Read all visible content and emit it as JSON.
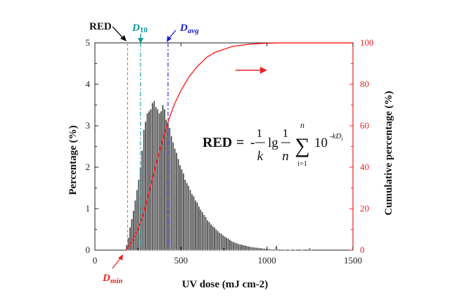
{
  "chart_data": {
    "type": "bar",
    "xlabel": "UV dose (mJ cm-2)",
    "ylabel": "Percentage (%)",
    "y2label": "Cumulative percentage (%)",
    "xlim": [
      0,
      1500
    ],
    "ylim": [
      0,
      5
    ],
    "y2lim": [
      0,
      100
    ],
    "xticks": [
      "0",
      "500",
      "1000",
      "1500"
    ],
    "yticks": [
      "0",
      "1",
      "2",
      "3",
      "4",
      "5"
    ],
    "y2ticks": [
      "0",
      "20",
      "40",
      "60",
      "80",
      "100"
    ],
    "bin_width": 10,
    "bins": [
      [
        180,
        0.12
      ],
      [
        190,
        0.3
      ],
      [
        200,
        0.55
      ],
      [
        210,
        0.75
      ],
      [
        220,
        0.95
      ],
      [
        230,
        1.2
      ],
      [
        240,
        1.45
      ],
      [
        250,
        1.7
      ],
      [
        260,
        2.0
      ],
      [
        270,
        2.4
      ],
      [
        280,
        2.9
      ],
      [
        290,
        3.1
      ],
      [
        300,
        3.3
      ],
      [
        310,
        3.35
      ],
      [
        320,
        3.4
      ],
      [
        330,
        3.55
      ],
      [
        340,
        3.6
      ],
      [
        350,
        3.45
      ],
      [
        360,
        3.4
      ],
      [
        370,
        3.3
      ],
      [
        380,
        3.35
      ],
      [
        390,
        3.5
      ],
      [
        400,
        3.4
      ],
      [
        410,
        3.15
      ],
      [
        420,
        3.05
      ],
      [
        430,
        2.95
      ],
      [
        440,
        2.75
      ],
      [
        450,
        2.6
      ],
      [
        460,
        2.45
      ],
      [
        470,
        2.35
      ],
      [
        480,
        2.2
      ],
      [
        490,
        2.05
      ],
      [
        500,
        1.95
      ],
      [
        510,
        1.85
      ],
      [
        520,
        1.7
      ],
      [
        530,
        1.62
      ],
      [
        540,
        1.55
      ],
      [
        550,
        1.45
      ],
      [
        560,
        1.35
      ],
      [
        570,
        1.3
      ],
      [
        580,
        1.2
      ],
      [
        590,
        1.15
      ],
      [
        600,
        1.05
      ],
      [
        610,
        0.98
      ],
      [
        620,
        0.92
      ],
      [
        630,
        0.85
      ],
      [
        640,
        0.8
      ],
      [
        650,
        0.72
      ],
      [
        660,
        0.68
      ],
      [
        670,
        0.62
      ],
      [
        680,
        0.58
      ],
      [
        690,
        0.55
      ],
      [
        700,
        0.5
      ],
      [
        710,
        0.46
      ],
      [
        720,
        0.42
      ],
      [
        730,
        0.4
      ],
      [
        740,
        0.36
      ],
      [
        750,
        0.33
      ],
      [
        760,
        0.3
      ],
      [
        770,
        0.28
      ],
      [
        780,
        0.25
      ],
      [
        790,
        0.22
      ],
      [
        800,
        0.2
      ],
      [
        810,
        0.18
      ],
      [
        820,
        0.17
      ],
      [
        830,
        0.15
      ],
      [
        840,
        0.14
      ],
      [
        850,
        0.13
      ],
      [
        860,
        0.12
      ],
      [
        870,
        0.11
      ],
      [
        880,
        0.1
      ],
      [
        890,
        0.09
      ],
      [
        900,
        0.08
      ],
      [
        910,
        0.07
      ],
      [
        920,
        0.07
      ],
      [
        930,
        0.06
      ],
      [
        940,
        0.06
      ],
      [
        950,
        0.05
      ],
      [
        960,
        0.05
      ],
      [
        970,
        0.04
      ],
      [
        980,
        0.04
      ],
      [
        990,
        0.03
      ],
      [
        1000,
        0.03
      ],
      [
        1010,
        0.03
      ],
      [
        1020,
        0.02
      ],
      [
        1030,
        0.02
      ],
      [
        1040,
        0.02
      ],
      [
        1050,
        0.1
      ],
      [
        1060,
        0.02
      ],
      [
        1080,
        0.02
      ],
      [
        1100,
        0.01
      ],
      [
        1130,
        0.01
      ],
      [
        1160,
        0.01
      ],
      [
        1200,
        0.01
      ],
      [
        1250,
        0.01
      ]
    ],
    "cumulative": [
      [
        180,
        0
      ],
      [
        200,
        2
      ],
      [
        220,
        5
      ],
      [
        250,
        10
      ],
      [
        280,
        17
      ],
      [
        300,
        23
      ],
      [
        330,
        33
      ],
      [
        360,
        43
      ],
      [
        400,
        55
      ],
      [
        430,
        63
      ],
      [
        460,
        70
      ],
      [
        500,
        77
      ],
      [
        550,
        84
      ],
      [
        600,
        89
      ],
      [
        650,
        93
      ],
      [
        700,
        95.5
      ],
      [
        800,
        98.3
      ],
      [
        900,
        99.4
      ],
      [
        1000,
        99.8
      ],
      [
        1100,
        100
      ],
      [
        1500,
        100
      ]
    ],
    "vlines": [
      {
        "x": 190,
        "color": "#ff5a5a"
      },
      {
        "x": 265,
        "color": "#0b9a99"
      },
      {
        "x": 425,
        "color": "#1b1bd6"
      }
    ],
    "annotations": {
      "red": "RED",
      "d10_base": "D",
      "d10_sub": "10",
      "davg_base": "D",
      "davg_sub": "avg",
      "dmin_base": "D",
      "dmin_sub": "min"
    },
    "formula": {
      "lhs": "RED",
      "eq": "=",
      "minus": "-",
      "one_a": "1",
      "k": "k",
      "lg": "lg",
      "one_b": "1",
      "n": "n",
      "sigma": "∑",
      "sum_top": "n",
      "sum_bottom": "i=1",
      "base": "10",
      "exponent": "-kD",
      "exponent_sub": "i"
    },
    "colors": {
      "bars": "#555555",
      "cumulative": "#ff2020",
      "right_axis": "#e8232a",
      "red_line": "#ff5a5a",
      "d10_line": "#0b9a99",
      "davg_line": "#1b1bd6"
    }
  }
}
